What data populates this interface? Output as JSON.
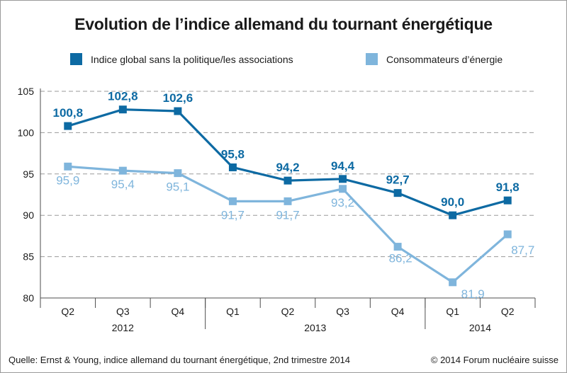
{
  "header": {
    "title": "Evolution de l’indice allemand du tournant énergétique"
  },
  "footer": {
    "source": "Quelle: Ernst & Young, indice allemand du tournant énergétique, 2nd trimestre 2014",
    "copyright": "© 2014 Forum nucléaire suisse"
  },
  "colors": {
    "dark_series": "#0d6aa3",
    "light_series": "#7fb5dc",
    "axis": "#4d4d4d",
    "grid": "#9a9a9a"
  },
  "chart_data": {
    "type": "line",
    "title": "Evolution de l’indice allemand du tournant énergétique",
    "categories": [
      "Q2",
      "Q3",
      "Q4",
      "Q1",
      "Q2",
      "Q3",
      "Q4",
      "Q1",
      "Q2"
    ],
    "years": [
      {
        "label": "2012",
        "span": [
          0,
          2
        ]
      },
      {
        "label": "2013",
        "span": [
          3,
          6
        ]
      },
      {
        "label": "2014",
        "span": [
          7,
          8
        ]
      }
    ],
    "ylim": [
      80,
      105
    ],
    "yticks": [
      80,
      85,
      90,
      95,
      100,
      105
    ],
    "grid": true,
    "legend_position": "top",
    "series": [
      {
        "name": "Indice global sans la politique/les associations",
        "color": "#0d6aa3",
        "values": [
          100.8,
          102.8,
          102.6,
          95.8,
          94.2,
          94.4,
          92.7,
          90.0,
          91.8
        ],
        "labels": [
          "100,8",
          "102,8",
          "102,6",
          "95,8",
          "94,2",
          "94,4",
          "92,7",
          "90,0",
          "91,8"
        ]
      },
      {
        "name": "Consommateurs d’énergie",
        "color": "#7fb5dc",
        "values": [
          95.9,
          95.4,
          95.1,
          91.7,
          91.7,
          93.2,
          86.2,
          81.9,
          87.7
        ],
        "labels": [
          "95,9",
          "95,4",
          "95,1",
          "91,7",
          "91,7",
          "93,2",
          "86,2",
          "81,9",
          "87,7"
        ]
      }
    ]
  }
}
